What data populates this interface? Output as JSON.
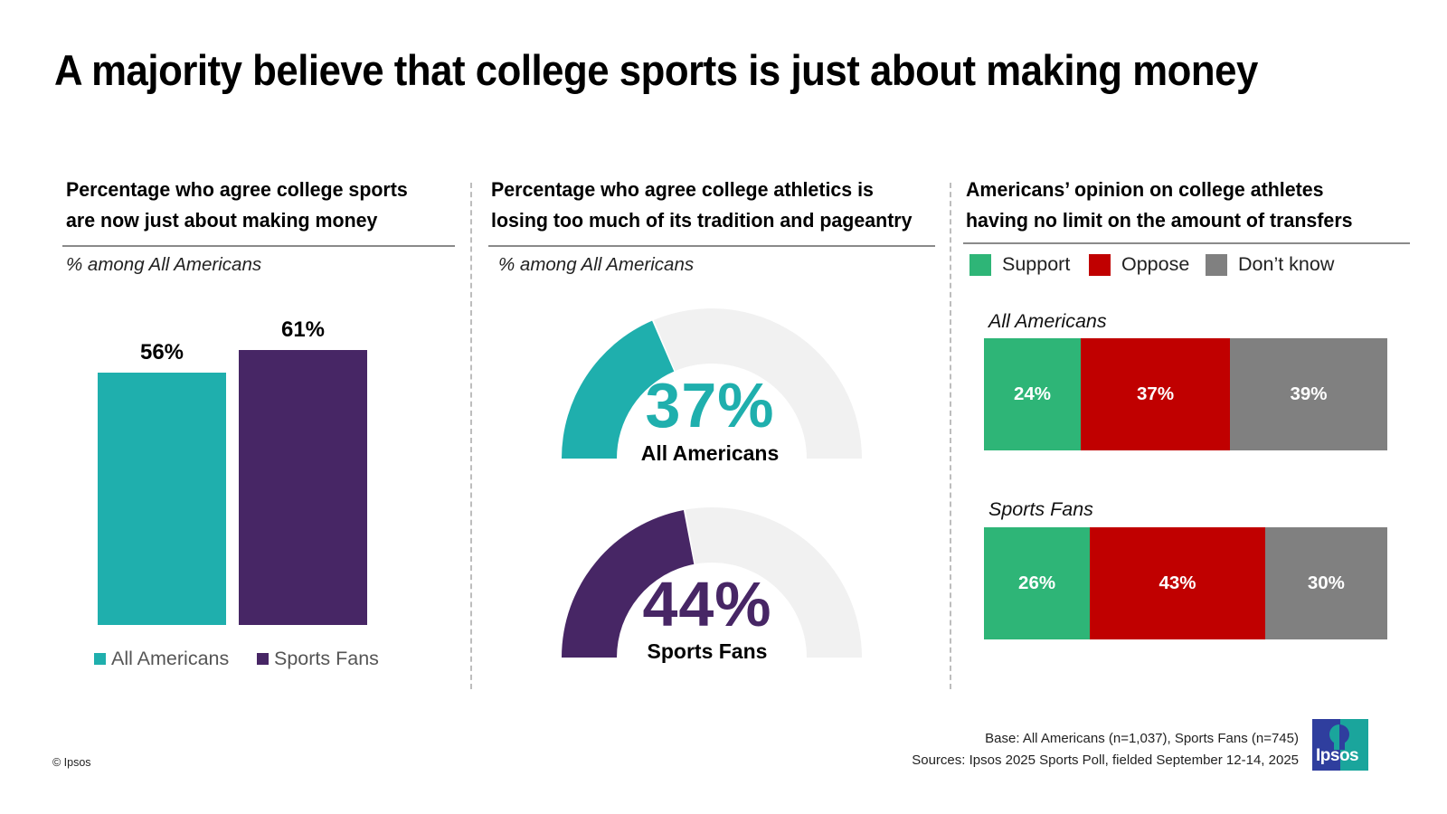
{
  "page": {
    "title": "A majority believe that college sports is just about making money",
    "copyright": "© Ipsos",
    "footer": {
      "base": "Base: All Americans (n=1,037), Sports Fans (n=745)",
      "sources": "Sources: Ipsos 2025 Sports Poll, fielded September 12-14, 2025"
    },
    "logo_text": "Ipsos"
  },
  "colors": {
    "all_americans": "#1fafad",
    "sports_fans": "#472665",
    "gauge_track": "#f1f1f1",
    "support": "#2eb577",
    "oppose": "#c00000",
    "dont_know": "#808080"
  },
  "chart_data": [
    {
      "type": "bar",
      "title_lines": [
        "Percentage who agree college sports",
        "are now just about making money"
      ],
      "subtitle": "% among All Americans",
      "categories": [
        "All Americans",
        "Sports Fans"
      ],
      "values": [
        56,
        61
      ],
      "value_labels": [
        "56%",
        "61%"
      ],
      "ylim": [
        0,
        100
      ],
      "legend": [
        "All Americans",
        "Sports Fans"
      ],
      "legend_position": "bottom",
      "grid": false
    },
    {
      "type": "pie",
      "variant": "half-donut gauge",
      "title_lines": [
        "Percentage who agree college athletics is",
        "losing too much of its tradition and pageantry"
      ],
      "subtitle": "% among All Americans",
      "gauges": [
        {
          "label": "All Americans",
          "value": 37,
          "value_label": "37%"
        },
        {
          "label": "Sports Fans",
          "value": 44,
          "value_label": "44%"
        }
      ],
      "max": 100
    },
    {
      "type": "bar",
      "variant": "stacked horizontal 100%",
      "title_lines": [
        "Americans’ opinion on college athletes",
        "having no limit on the amount of transfers"
      ],
      "legend": [
        "Support",
        "Oppose",
        "Don’t know"
      ],
      "legend_position": "top",
      "categories": [
        "All Americans",
        "Sports Fans"
      ],
      "series": [
        {
          "name": "Support",
          "values": [
            24,
            26
          ]
        },
        {
          "name": "Oppose",
          "values": [
            37,
            43
          ]
        },
        {
          "name": "Don’t know",
          "values": [
            39,
            30
          ]
        }
      ],
      "value_labels": [
        [
          "24%",
          "37%",
          "39%"
        ],
        [
          "26%",
          "43%",
          "30%"
        ]
      ]
    }
  ]
}
